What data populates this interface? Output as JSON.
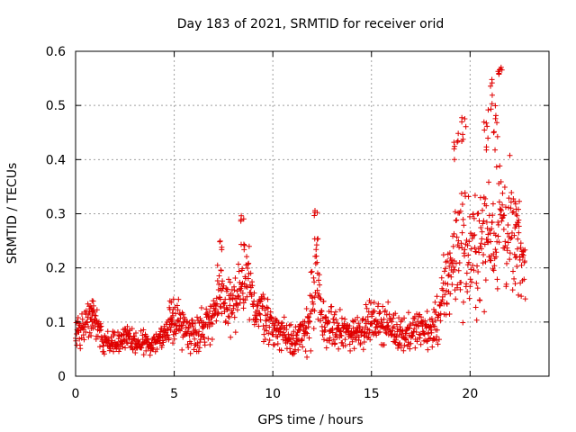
{
  "chart_data": {
    "type": "scatter",
    "title": "Day 183 of 2021, SRMTID for receiver orid",
    "xlabel": "GPS time / hours",
    "ylabel": "SRMTID / TECUs",
    "xlim": [
      0,
      24
    ],
    "ylim": [
      0,
      0.6
    ],
    "xticks": [
      0,
      5,
      10,
      15,
      20
    ],
    "yticks": [
      0,
      0.1,
      0.2,
      0.3,
      0.4,
      0.5,
      0.6
    ],
    "xtick_labels": [
      "0",
      "5",
      "10",
      "15",
      "20"
    ],
    "ytick_labels": [
      "0",
      "0.1",
      "0.2",
      "0.3",
      "0.4",
      "0.5",
      "0.6"
    ],
    "grid": true,
    "marker": "+",
    "color": "#e00000",
    "series": [
      {
        "name": "SRMTID",
        "envelope_x": [
          0.0,
          0.5,
          0.8,
          1.0,
          1.4,
          2.0,
          2.5,
          3.0,
          3.5,
          4.0,
          4.5,
          4.8,
          5.0,
          5.5,
          6.0,
          6.5,
          7.0,
          7.5,
          8.0,
          8.5,
          8.8,
          9.0,
          9.5,
          10.0,
          10.5,
          11.0,
          11.5,
          12.0,
          12.2,
          12.5,
          13.0,
          13.5,
          14.0,
          14.5,
          15.0,
          15.5,
          16.0,
          16.5,
          17.0,
          17.5,
          18.0,
          18.5,
          19.0,
          19.5,
          20.0,
          20.5,
          21.0,
          21.5,
          22.0,
          22.5,
          22.8
        ],
        "envelope_mean": [
          0.08,
          0.09,
          0.12,
          0.11,
          0.06,
          0.065,
          0.07,
          0.06,
          0.06,
          0.065,
          0.075,
          0.09,
          0.11,
          0.09,
          0.08,
          0.09,
          0.12,
          0.14,
          0.13,
          0.16,
          0.17,
          0.13,
          0.12,
          0.09,
          0.08,
          0.07,
          0.07,
          0.13,
          0.18,
          0.1,
          0.09,
          0.08,
          0.08,
          0.09,
          0.1,
          0.1,
          0.09,
          0.08,
          0.08,
          0.09,
          0.08,
          0.12,
          0.2,
          0.25,
          0.22,
          0.24,
          0.27,
          0.3,
          0.26,
          0.22,
          0.2
        ],
        "envelope_spread": [
          0.03,
          0.03,
          0.03,
          0.025,
          0.02,
          0.02,
          0.02,
          0.02,
          0.02,
          0.02,
          0.02,
          0.03,
          0.04,
          0.03,
          0.03,
          0.03,
          0.04,
          0.05,
          0.05,
          0.06,
          0.06,
          0.04,
          0.04,
          0.03,
          0.03,
          0.03,
          0.03,
          0.06,
          0.08,
          0.04,
          0.03,
          0.03,
          0.03,
          0.03,
          0.03,
          0.03,
          0.03,
          0.03,
          0.03,
          0.03,
          0.03,
          0.05,
          0.08,
          0.1,
          0.1,
          0.09,
          0.1,
          0.12,
          0.1,
          0.07,
          0.05
        ],
        "peaks": [
          {
            "x": 0.9,
            "y": 0.14
          },
          {
            "x": 4.9,
            "y": 0.15
          },
          {
            "x": 7.3,
            "y": 0.25
          },
          {
            "x": 8.5,
            "y": 0.3
          },
          {
            "x": 12.2,
            "y": 0.31
          },
          {
            "x": 19.3,
            "y": 0.45
          },
          {
            "x": 19.7,
            "y": 0.49
          },
          {
            "x": 21.0,
            "y": 0.55
          },
          {
            "x": 21.5,
            "y": 0.58
          },
          {
            "x": 21.3,
            "y": 0.5
          },
          {
            "x": 20.8,
            "y": 0.47
          },
          {
            "x": 22.4,
            "y": 0.33
          }
        ]
      }
    ]
  }
}
